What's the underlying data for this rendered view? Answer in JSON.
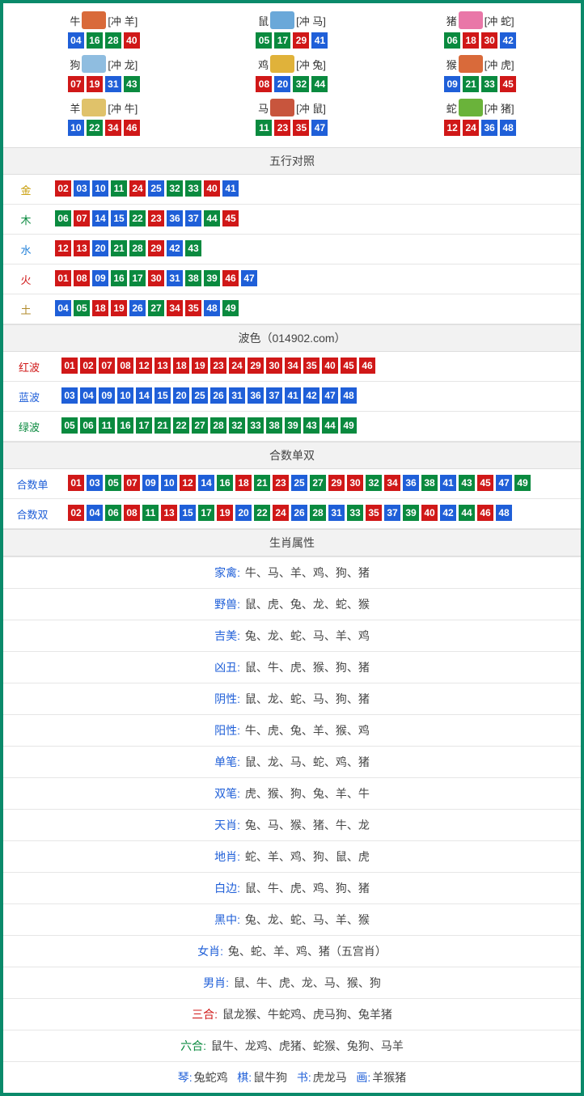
{
  "colors": {
    "red": "#d01818",
    "blue": "#1f5fd8",
    "green": "#0a8a3f",
    "border": "#0a8a6a"
  },
  "ballColor": {
    "01": "red",
    "02": "red",
    "07": "red",
    "08": "red",
    "12": "red",
    "13": "red",
    "18": "red",
    "19": "red",
    "23": "red",
    "24": "red",
    "29": "red",
    "30": "red",
    "34": "red",
    "35": "red",
    "40": "red",
    "45": "red",
    "46": "red",
    "03": "blue",
    "04": "blue",
    "09": "blue",
    "10": "blue",
    "14": "blue",
    "15": "blue",
    "20": "blue",
    "25": "blue",
    "26": "blue",
    "31": "blue",
    "36": "blue",
    "37": "blue",
    "41": "blue",
    "42": "blue",
    "47": "blue",
    "48": "blue",
    "05": "green",
    "06": "green",
    "11": "green",
    "16": "green",
    "17": "green",
    "21": "green",
    "22": "green",
    "27": "green",
    "28": "green",
    "32": "green",
    "33": "green",
    "38": "green",
    "39": "green",
    "43": "green",
    "44": "green",
    "49": "green"
  },
  "zodiac": [
    {
      "name": "牛",
      "icon": "#d96a3a",
      "clash": "[冲 羊]",
      "nums": [
        "04",
        "16",
        "28",
        "40"
      ]
    },
    {
      "name": "鼠",
      "icon": "#6aa8d9",
      "clash": "[冲 马]",
      "nums": [
        "05",
        "17",
        "29",
        "41"
      ]
    },
    {
      "name": "猪",
      "icon": "#e977a8",
      "clash": "[冲 蛇]",
      "nums": [
        "06",
        "18",
        "30",
        "42"
      ]
    },
    {
      "name": "狗",
      "icon": "#8fbde0",
      "clash": "[冲 龙]",
      "nums": [
        "07",
        "19",
        "31",
        "43"
      ]
    },
    {
      "name": "鸡",
      "icon": "#e0b23a",
      "clash": "[冲 兔]",
      "nums": [
        "08",
        "20",
        "32",
        "44"
      ]
    },
    {
      "name": "猴",
      "icon": "#d96a3a",
      "clash": "[冲 虎]",
      "nums": [
        "09",
        "21",
        "33",
        "45"
      ]
    },
    {
      "name": "羊",
      "icon": "#e0c26a",
      "clash": "[冲 牛]",
      "nums": [
        "10",
        "22",
        "34",
        "46"
      ]
    },
    {
      "name": "马",
      "icon": "#c8553d",
      "clash": "[冲 鼠]",
      "nums": [
        "11",
        "23",
        "35",
        "47"
      ]
    },
    {
      "name": "蛇",
      "icon": "#6ab33a",
      "clash": "[冲 猪]",
      "nums": [
        "12",
        "24",
        "36",
        "48"
      ]
    }
  ],
  "sections": {
    "wuxing_title": "五行对照",
    "bose_title": "波色（014902.com）",
    "heshu_title": "合数单双",
    "shuxing_title": "生肖属性"
  },
  "wuxing": [
    {
      "label": "金",
      "cls": "lab-gold",
      "nums": [
        "02",
        "03",
        "10",
        "11",
        "24",
        "25",
        "32",
        "33",
        "40",
        "41"
      ]
    },
    {
      "label": "木",
      "cls": "lab-wood",
      "nums": [
        "06",
        "07",
        "14",
        "15",
        "22",
        "23",
        "36",
        "37",
        "44",
        "45"
      ]
    },
    {
      "label": "水",
      "cls": "lab-water",
      "nums": [
        "12",
        "13",
        "20",
        "21",
        "28",
        "29",
        "42",
        "43"
      ]
    },
    {
      "label": "火",
      "cls": "lab-fire",
      "nums": [
        "01",
        "08",
        "09",
        "16",
        "17",
        "30",
        "31",
        "38",
        "39",
        "46",
        "47"
      ]
    },
    {
      "label": "土",
      "cls": "lab-earth",
      "nums": [
        "04",
        "05",
        "18",
        "19",
        "26",
        "27",
        "34",
        "35",
        "48",
        "49"
      ]
    }
  ],
  "bose": [
    {
      "label": "红波",
      "cls": "lab-red",
      "nums": [
        "01",
        "02",
        "07",
        "08",
        "12",
        "13",
        "18",
        "19",
        "23",
        "24",
        "29",
        "30",
        "34",
        "35",
        "40",
        "45",
        "46"
      ]
    },
    {
      "label": "蓝波",
      "cls": "lab-blue",
      "nums": [
        "03",
        "04",
        "09",
        "10",
        "14",
        "15",
        "20",
        "25",
        "26",
        "31",
        "36",
        "37",
        "41",
        "42",
        "47",
        "48"
      ]
    },
    {
      "label": "绿波",
      "cls": "lab-green",
      "nums": [
        "05",
        "06",
        "11",
        "16",
        "17",
        "21",
        "22",
        "27",
        "28",
        "32",
        "33",
        "38",
        "39",
        "43",
        "44",
        "49"
      ]
    }
  ],
  "heshu": [
    {
      "label": "合数单",
      "cls": "lab-blue",
      "nums": [
        "01",
        "03",
        "05",
        "07",
        "09",
        "10",
        "12",
        "14",
        "16",
        "18",
        "21",
        "23",
        "25",
        "27",
        "29",
        "30",
        "32",
        "34",
        "36",
        "38",
        "41",
        "43",
        "45",
        "47",
        "49"
      ]
    },
    {
      "label": "合数双",
      "cls": "lab-blue",
      "nums": [
        "02",
        "04",
        "06",
        "08",
        "11",
        "13",
        "15",
        "17",
        "19",
        "20",
        "22",
        "24",
        "26",
        "28",
        "31",
        "33",
        "35",
        "37",
        "39",
        "40",
        "42",
        "44",
        "46",
        "48"
      ]
    }
  ],
  "shuxing": [
    {
      "key": "家禽",
      "kcolor": "",
      "val": "牛、马、羊、鸡、狗、猪"
    },
    {
      "key": "野兽",
      "kcolor": "",
      "val": "鼠、虎、兔、龙、蛇、猴"
    },
    {
      "key": "吉美",
      "kcolor": "",
      "val": "兔、龙、蛇、马、羊、鸡"
    },
    {
      "key": "凶丑",
      "kcolor": "",
      "val": "鼠、牛、虎、猴、狗、猪"
    },
    {
      "key": "阴性",
      "kcolor": "",
      "val": "鼠、龙、蛇、马、狗、猪"
    },
    {
      "key": "阳性",
      "kcolor": "",
      "val": "牛、虎、兔、羊、猴、鸡"
    },
    {
      "key": "单笔",
      "kcolor": "",
      "val": "鼠、龙、马、蛇、鸡、猪"
    },
    {
      "key": "双笔",
      "kcolor": "",
      "val": "虎、猴、狗、兔、羊、牛"
    },
    {
      "key": "天肖",
      "kcolor": "",
      "val": "兔、马、猴、猪、牛、龙"
    },
    {
      "key": "地肖",
      "kcolor": "",
      "val": "蛇、羊、鸡、狗、鼠、虎"
    },
    {
      "key": "白边",
      "kcolor": "",
      "val": "鼠、牛、虎、鸡、狗、猪"
    },
    {
      "key": "黑中",
      "kcolor": "",
      "val": "兔、龙、蛇、马、羊、猴"
    },
    {
      "key": "女肖",
      "kcolor": "",
      "val": "兔、蛇、羊、鸡、猪（五宫肖）"
    },
    {
      "key": "男肖",
      "kcolor": "",
      "val": "鼠、牛、虎、龙、马、猴、狗"
    },
    {
      "key": "三合",
      "kcolor": "red",
      "val": "鼠龙猴、牛蛇鸡、虎马狗、兔羊猪"
    },
    {
      "key": "六合",
      "kcolor": "green",
      "val": "鼠牛、龙鸡、虎猪、蛇猴、兔狗、马羊"
    }
  ],
  "bottom": [
    {
      "key": "琴",
      "val": "兔蛇鸡"
    },
    {
      "key": "棋",
      "val": "鼠牛狗"
    },
    {
      "key": "书",
      "val": "虎龙马"
    },
    {
      "key": "画",
      "val": "羊猴猪"
    }
  ]
}
